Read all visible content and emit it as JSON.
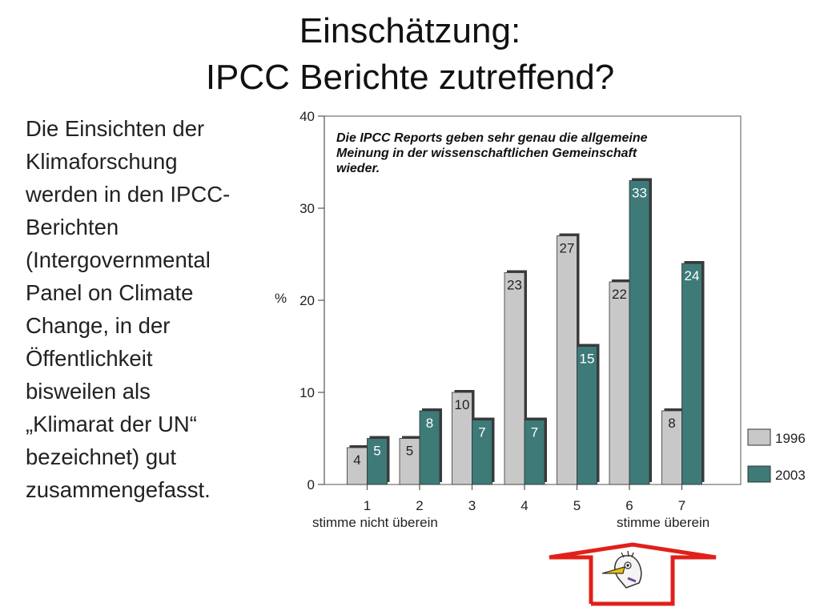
{
  "slide": {
    "title_lines": [
      "Einschätzung:",
      "IPCC Berichte zutreffend?"
    ],
    "body_lines": [
      "Die Einsichten der",
      "Klimaforschung",
      "werden in den IPCC-",
      "Berichten",
      "(Intergovernmental",
      "Panel on Climate",
      "Change, in der",
      "Öffentlichkeit",
      "bisweilen als",
      "„Klimarat der UN“",
      "bezeichnet) gut",
      "zusammengefasst."
    ]
  },
  "chart_data": {
    "type": "bar",
    "title": "Die IPCC Reports geben sehr genau die allgemeine Meinung in der wissenschaftlichen Gemeinschaft wieder.",
    "title_lines": [
      "Die IPCC Reports geben sehr genau die allgemeine",
      "Meinung in der wissenschaftlichen Gemeinschaft",
      "wieder."
    ],
    "ylabel": "%",
    "ylim": [
      0,
      40
    ],
    "yticks": [
      0,
      10,
      20,
      30,
      40
    ],
    "categories": [
      "1",
      "2",
      "3",
      "4",
      "5",
      "6",
      "7"
    ],
    "x_annotations": {
      "left": "stimme nicht überein",
      "right": "stimme überein"
    },
    "series": [
      {
        "name": "1996",
        "color": "#c8c8c8",
        "values": [
          4,
          5,
          10,
          23,
          27,
          22,
          8
        ]
      },
      {
        "name": "2003",
        "color": "#3d7a78",
        "values": [
          5,
          8,
          7,
          7,
          15,
          33,
          24
        ]
      }
    ],
    "legend_position": "bottom-right",
    "grid": false
  },
  "decoration": {
    "arrow_color": "#e0201a",
    "mascot": "cartoon-bird-icon"
  }
}
